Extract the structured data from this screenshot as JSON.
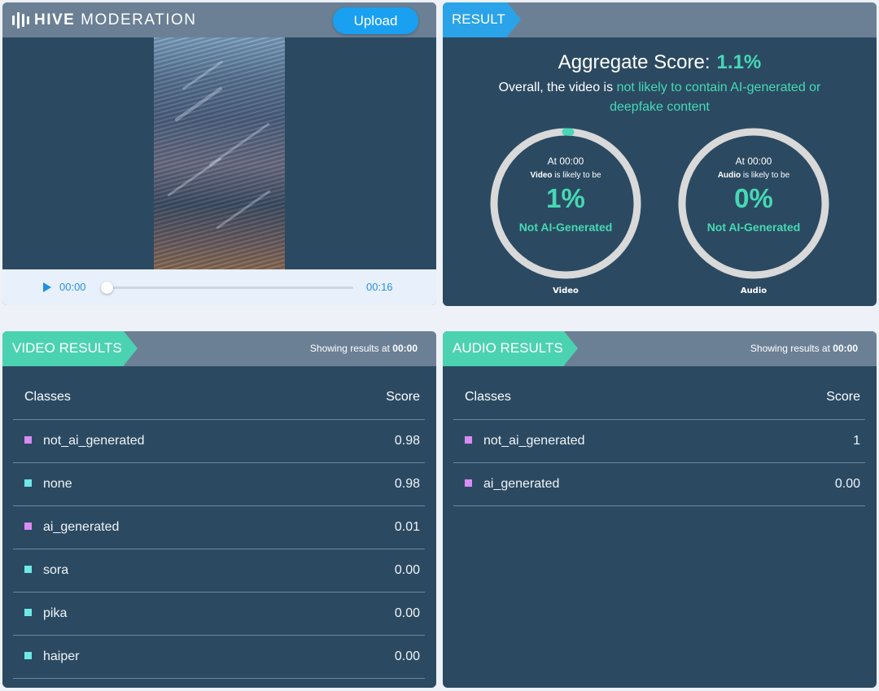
{
  "brand": {
    "logo_bold": "HIVE",
    "logo_rest": "MODERATION"
  },
  "player": {
    "upload_label": "Upload",
    "current_time": "00:00",
    "duration": "00:16",
    "progress": 0.0
  },
  "result": {
    "tag": "RESULT",
    "aggregate_label": "Aggregate Score:",
    "aggregate_value": "1.1%",
    "overall_prefix": "Overall, the video is",
    "overall_highlight": "not likely to contain AI-generated or deepfake content",
    "gauges": [
      {
        "at": "At 00:00",
        "subject": "Video",
        "likely_text": "is likely to be",
        "percent": "1%",
        "verdict": "Not AI-Generated",
        "caption": "Video",
        "fill_fraction": 0.01
      },
      {
        "at": "At 00:00",
        "subject": "Audio",
        "likely_text": "is likely to be",
        "percent": "0%",
        "verdict": "Not AI-Generated",
        "caption": "Audio",
        "fill_fraction": 0.0
      }
    ]
  },
  "video_results": {
    "tag": "VIDEO RESULTS",
    "showing_prefix": "Showing results at",
    "showing_time": "00:00",
    "col_classes": "Classes",
    "col_score": "Score",
    "rows": [
      {
        "name": "not_ai_generated",
        "score": "0.98",
        "color": "#d98cf2"
      },
      {
        "name": "none",
        "score": "0.98",
        "color": "#6fe8e6"
      },
      {
        "name": "ai_generated",
        "score": "0.01",
        "color": "#d98cf2"
      },
      {
        "name": "sora",
        "score": "0.00",
        "color": "#6fe8e6"
      },
      {
        "name": "pika",
        "score": "0.00",
        "color": "#6fe8e6"
      },
      {
        "name": "haiper",
        "score": "0.00",
        "color": "#6fe8e6"
      }
    ]
  },
  "audio_results": {
    "tag": "AUDIO RESULTS",
    "showing_prefix": "Showing results at",
    "showing_time": "00:00",
    "col_classes": "Classes",
    "col_score": "Score",
    "rows": [
      {
        "name": "not_ai_generated",
        "score": "1",
        "color": "#d98cf2"
      },
      {
        "name": "ai_generated",
        "score": "0.00",
        "color": "#d98cf2"
      }
    ]
  },
  "colors": {
    "accent_green": "#46d9b4",
    "accent_blue": "#2aa3e8",
    "panel_bg": "#2b4a62",
    "header_bg": "#6b8095"
  }
}
